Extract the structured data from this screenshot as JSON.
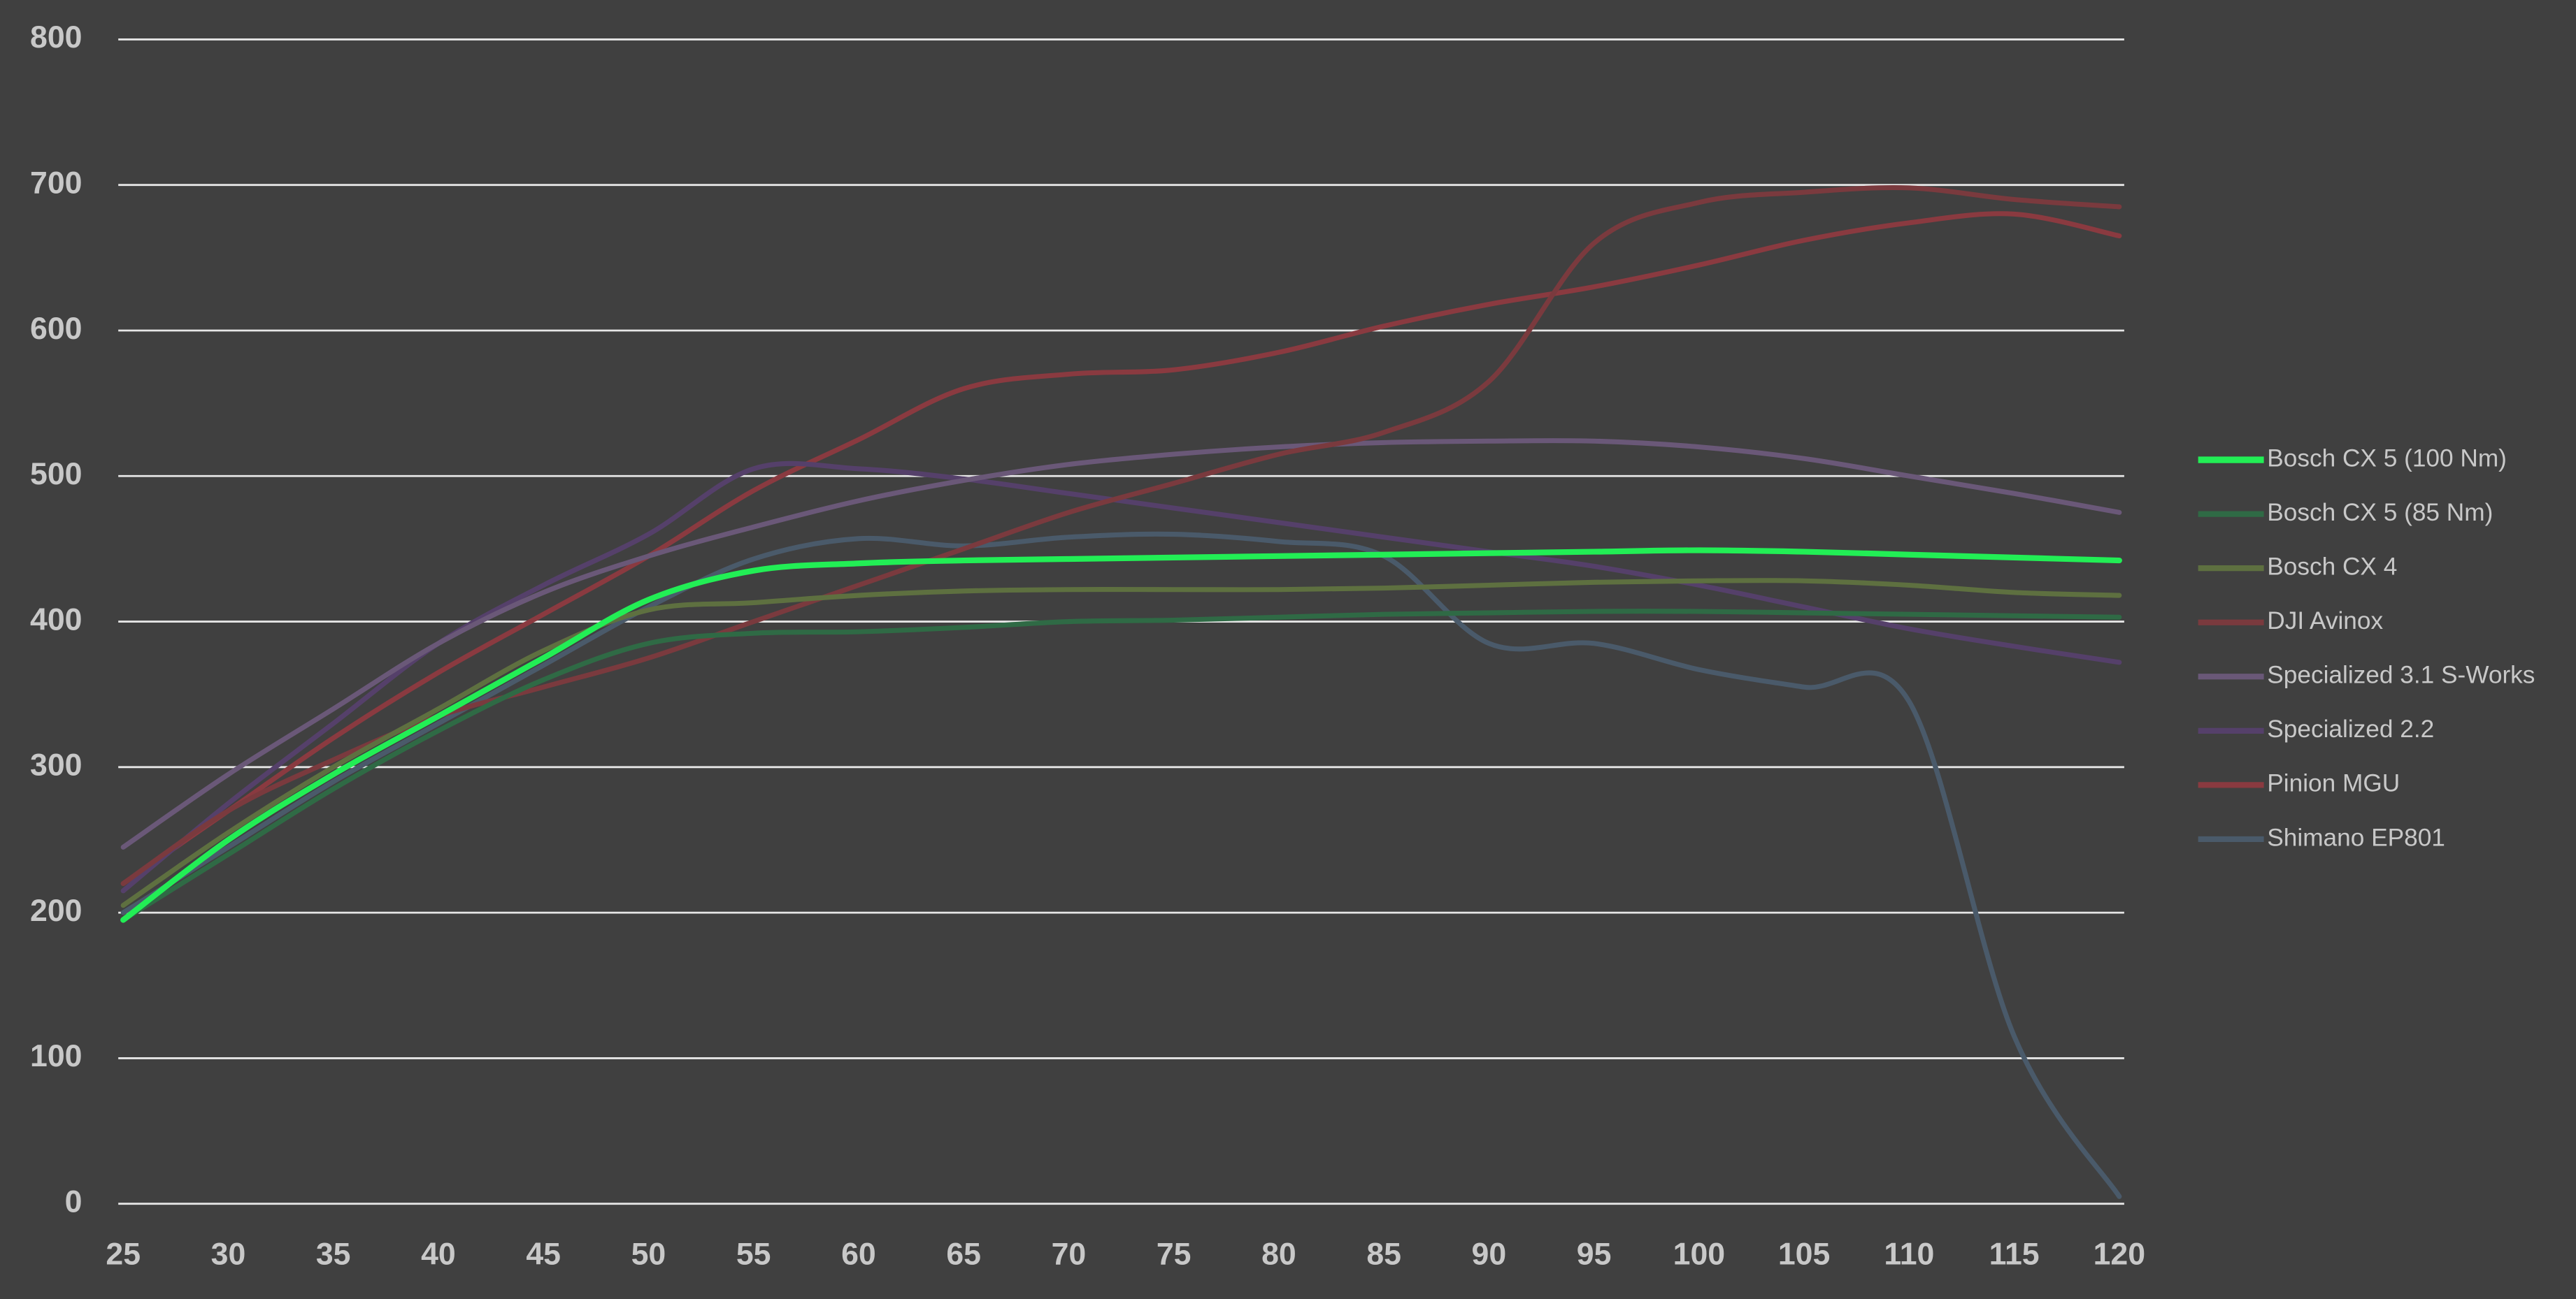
{
  "chart_data": {
    "type": "line",
    "x": [
      25,
      30,
      35,
      40,
      45,
      50,
      55,
      60,
      65,
      70,
      75,
      80,
      85,
      90,
      95,
      100,
      105,
      110,
      115,
      120
    ],
    "xlim": [
      25,
      120
    ],
    "xticks": [
      25,
      30,
      35,
      40,
      45,
      50,
      55,
      60,
      65,
      70,
      75,
      80,
      85,
      90,
      95,
      100,
      105,
      110,
      115,
      120
    ],
    "ylim": [
      0,
      800
    ],
    "yticks": [
      0,
      100,
      200,
      300,
      400,
      500,
      600,
      700,
      800
    ],
    "grid": true,
    "legend": "right",
    "series": [
      {
        "name": "Bosch CX 5 (100 Nm)",
        "color": "#22ee55",
        "values": [
          195,
          250,
          295,
          335,
          375,
          415,
          435,
          440,
          442,
          443,
          444,
          445,
          446,
          447,
          448,
          449,
          448,
          446,
          444,
          442
        ]
      },
      {
        "name": "Bosch CX 5 (85 Nm)",
        "color": "#2f6a45",
        "values": [
          195,
          240,
          285,
          325,
          360,
          385,
          392,
          393,
          396,
          400,
          401,
          403,
          405,
          406,
          407,
          407,
          406,
          405,
          404,
          403
        ]
      },
      {
        "name": "Bosch CX 4",
        "color": "#5e7040",
        "values": [
          205,
          255,
          300,
          340,
          380,
          408,
          413,
          418,
          421,
          422,
          422,
          422,
          423,
          425,
          427,
          428,
          428,
          425,
          420,
          418
        ]
      },
      {
        "name": "DJI Avinox",
        "color": "#7a3a3e",
        "values": [
          220,
          270,
          305,
          335,
          355,
          375,
          400,
          425,
          450,
          475,
          495,
          515,
          530,
          565,
          660,
          688,
          695,
          698,
          690,
          685
        ]
      },
      {
        "name": "Specialized 3.1 S-Works",
        "color": "#6a5878",
        "values": [
          245,
          295,
          340,
          385,
          420,
          445,
          465,
          483,
          497,
          508,
          515,
          520,
          523,
          524,
          524,
          520,
          512,
          500,
          488,
          475
        ]
      },
      {
        "name": "Specialized 2.2",
        "color": "#55406a",
        "values": [
          215,
          275,
          330,
          385,
          425,
          460,
          505,
          505,
          498,
          488,
          478,
          468,
          458,
          448,
          438,
          425,
          410,
          395,
          383,
          372
        ]
      },
      {
        "name": "Pinion MGU",
        "color": "#8a3a40",
        "values": [
          220,
          270,
          320,
          365,
          405,
          445,
          490,
          525,
          560,
          570,
          573,
          585,
          603,
          618,
          630,
          645,
          662,
          674,
          680,
          665
        ]
      },
      {
        "name": "Shimano EP801",
        "color": "#4a5a6a",
        "values": [
          200,
          245,
          290,
          330,
          370,
          410,
          443,
          457,
          452,
          458,
          460,
          455,
          445,
          385,
          385,
          367,
          355,
          345,
          115,
          5
        ]
      }
    ]
  }
}
